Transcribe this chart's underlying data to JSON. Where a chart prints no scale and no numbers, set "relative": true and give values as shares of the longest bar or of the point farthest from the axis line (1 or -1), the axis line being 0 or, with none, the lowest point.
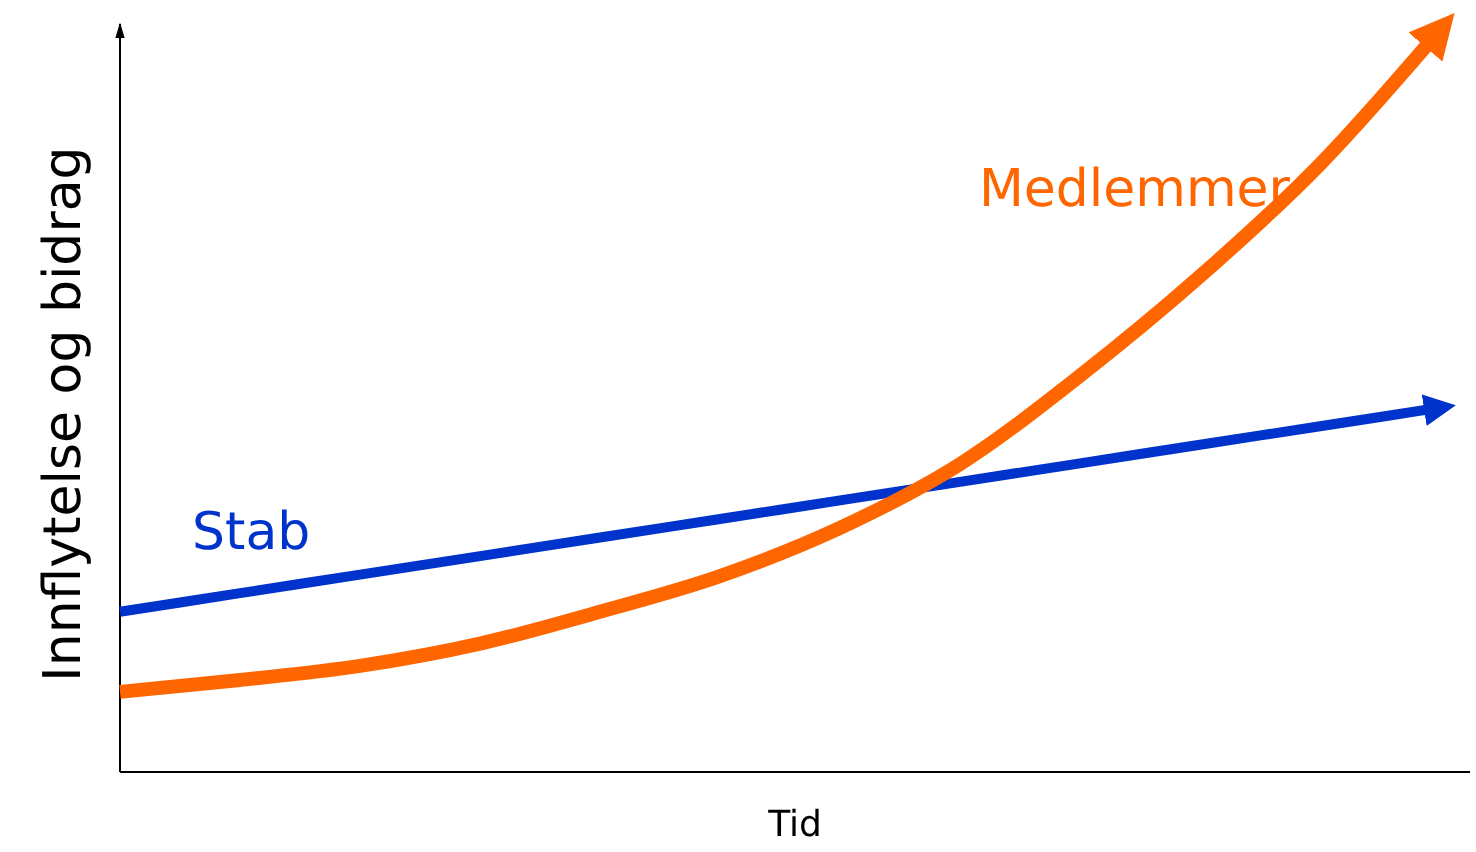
{
  "chart_data": {
    "type": "line",
    "relative": true,
    "xlabel": "Tid",
    "ylabel": "Innflytelse og bidrag",
    "categories": [
      null,
      null,
      null,
      null,
      null,
      null,
      null,
      null,
      null,
      null,
      null,
      null
    ],
    "series": [
      {
        "name": "Stab",
        "color": "#0033cc",
        "values": [
          0.216,
          0.241,
          0.266,
          0.291,
          0.316,
          0.341,
          0.366,
          0.391,
          0.416,
          0.441,
          0.466,
          0.491
        ]
      },
      {
        "name": "Medlemmer",
        "color": "#ff6600",
        "values": [
          0.108,
          0.124,
          0.143,
          0.173,
          0.216,
          0.264,
          0.329,
          0.415,
          0.534,
          0.668,
          0.819,
          1
        ]
      }
    ]
  }
}
